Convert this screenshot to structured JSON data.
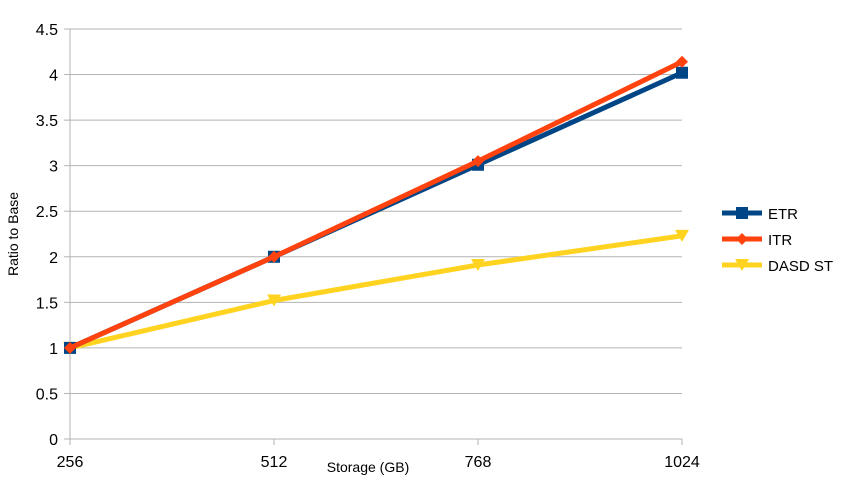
{
  "chart_data": {
    "type": "line",
    "title": "",
    "xlabel": "Storage (GB)",
    "ylabel": "Ratio to Base",
    "categories": [
      "256",
      "512",
      "768",
      "1024"
    ],
    "ylim": [
      0,
      4.5
    ],
    "yticks": [
      "0",
      "0.5",
      "1",
      "1.5",
      "2",
      "2.5",
      "3",
      "3.5",
      "4",
      "4.5"
    ],
    "grid": "horizontal",
    "legend_position": "right",
    "series": [
      {
        "name": "ETR",
        "values": [
          1.0,
          2.0,
          3.01,
          4.02
        ],
        "color": "#004586",
        "marker": "square"
      },
      {
        "name": "ITR",
        "values": [
          1.0,
          2.0,
          3.05,
          4.14
        ],
        "color": "#ff420e",
        "marker": "diamond"
      },
      {
        "name": "DASD ST",
        "values": [
          1.0,
          1.52,
          1.91,
          2.23
        ],
        "color": "#ffd320",
        "marker": "triangle-down"
      }
    ]
  }
}
